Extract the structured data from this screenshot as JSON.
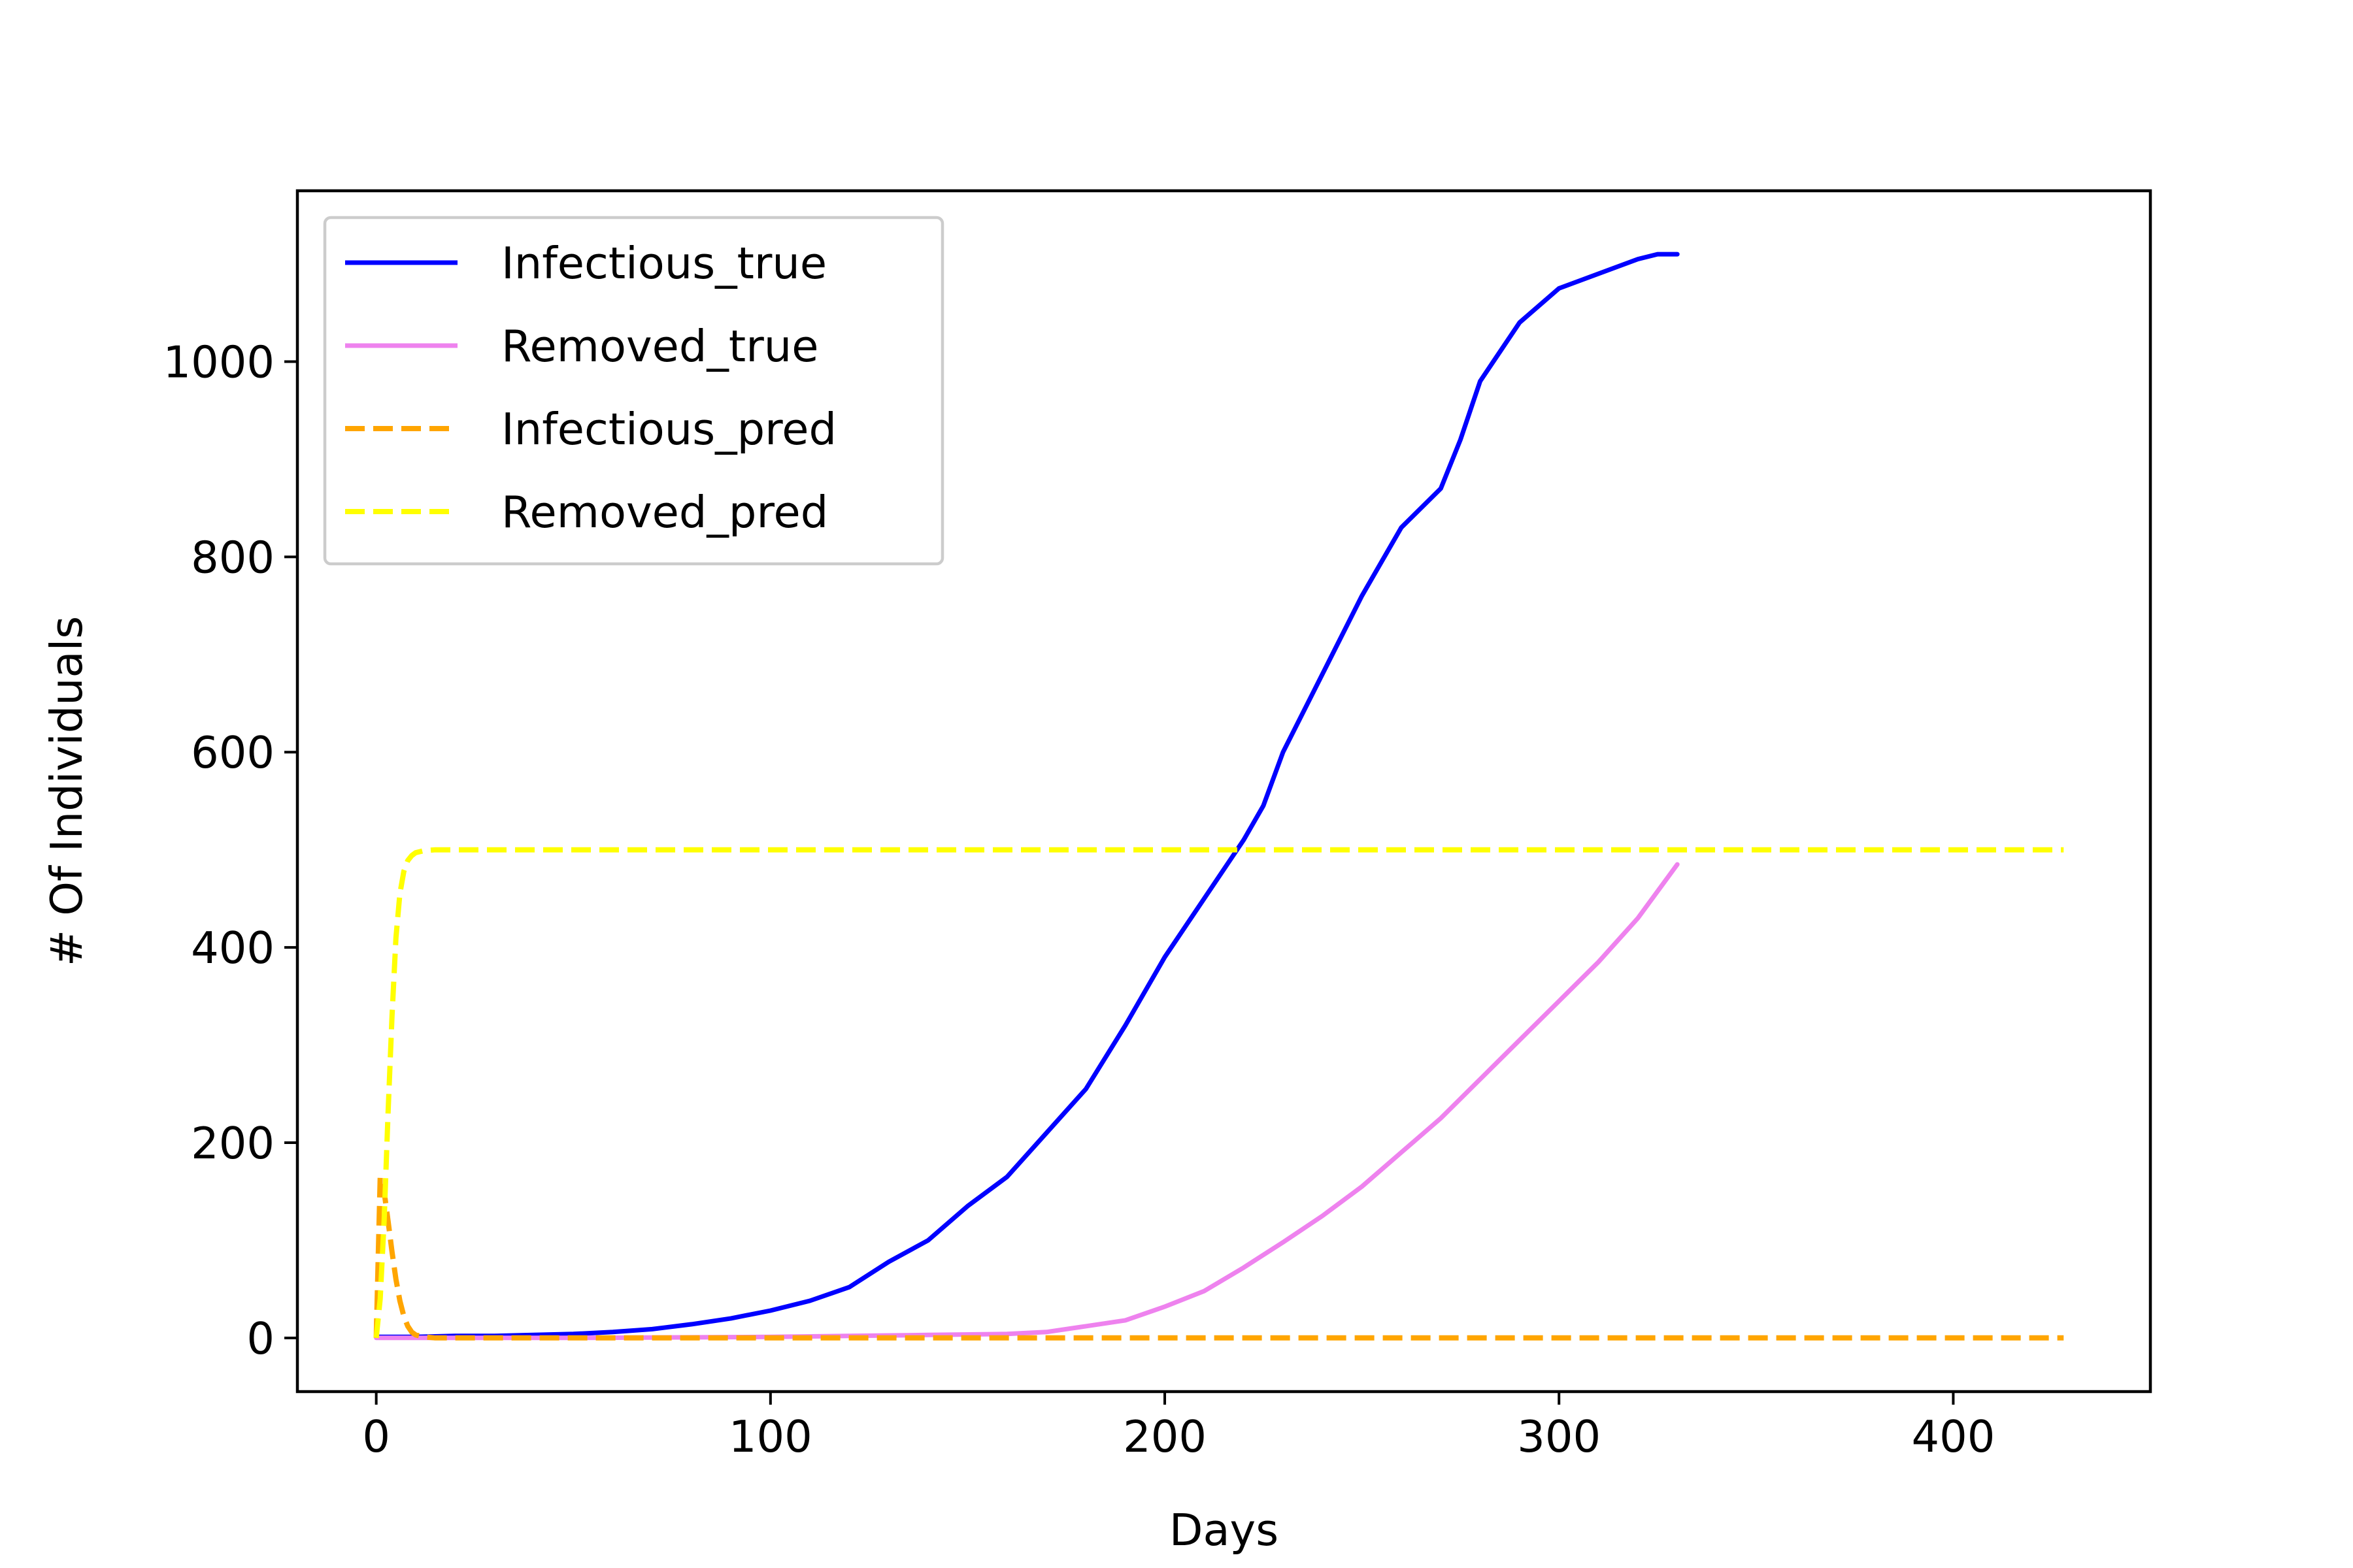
{
  "chart_data": {
    "type": "line",
    "xlabel": "Days",
    "ylabel": "# Of Individuals",
    "xlim": [
      -20,
      450
    ],
    "ylim": [
      -55,
      1175
    ],
    "xticks": [
      0,
      100,
      200,
      300,
      400
    ],
    "yticks": [
      0,
      200,
      400,
      600,
      800,
      1000
    ],
    "grid": false,
    "legend_position": "upper-left",
    "series": [
      {
        "name": "Infectious_true",
        "color": "#0000ff",
        "style": "solid",
        "x": [
          0,
          10,
          20,
          30,
          40,
          50,
          60,
          70,
          80,
          90,
          100,
          110,
          120,
          130,
          140,
          150,
          160,
          170,
          180,
          190,
          200,
          210,
          220,
          225,
          230,
          240,
          250,
          260,
          270,
          275,
          280,
          290,
          300,
          310,
          320,
          325,
          330
        ],
        "y": [
          1,
          1,
          2,
          2,
          3,
          4,
          6,
          9,
          14,
          20,
          28,
          38,
          52,
          78,
          100,
          135,
          165,
          210,
          255,
          320,
          390,
          450,
          510,
          545,
          600,
          680,
          760,
          830,
          870,
          920,
          980,
          1040,
          1075,
          1090,
          1105,
          1110,
          1110
        ]
      },
      {
        "name": "Removed_true",
        "color": "#ee82ee",
        "style": "solid",
        "x": [
          0,
          50,
          100,
          120,
          140,
          160,
          170,
          180,
          190,
          200,
          210,
          220,
          230,
          240,
          250,
          260,
          270,
          280,
          290,
          300,
          310,
          320,
          330
        ],
        "y": [
          0,
          0,
          1,
          2,
          3,
          4,
          6,
          12,
          18,
          32,
          48,
          72,
          98,
          125,
          155,
          190,
          225,
          265,
          305,
          345,
          385,
          430,
          485
        ]
      },
      {
        "name": "Infectious_pred",
        "color": "#ffa500",
        "style": "dashed",
        "x": [
          0,
          1,
          2,
          3,
          4,
          5,
          6,
          7,
          8,
          9,
          10,
          12,
          15,
          20,
          50,
          100,
          200,
          300,
          400,
          428
        ],
        "y": [
          0,
          165,
          150,
          120,
          88,
          60,
          38,
          22,
          12,
          6,
          3,
          1,
          0,
          0,
          0,
          0,
          0,
          0,
          0,
          0
        ]
      },
      {
        "name": "Removed_pred",
        "color": "#ffff00",
        "style": "dashed",
        "x": [
          0,
          1,
          2,
          3,
          4,
          5,
          6,
          7,
          8,
          9,
          10,
          12,
          15,
          20,
          50,
          100,
          200,
          300,
          400,
          428
        ],
        "y": [
          0,
          40,
          120,
          230,
          330,
          410,
          455,
          478,
          489,
          494,
          497,
          499,
          500,
          500,
          500,
          500,
          500,
          500,
          500,
          500
        ]
      }
    ]
  }
}
